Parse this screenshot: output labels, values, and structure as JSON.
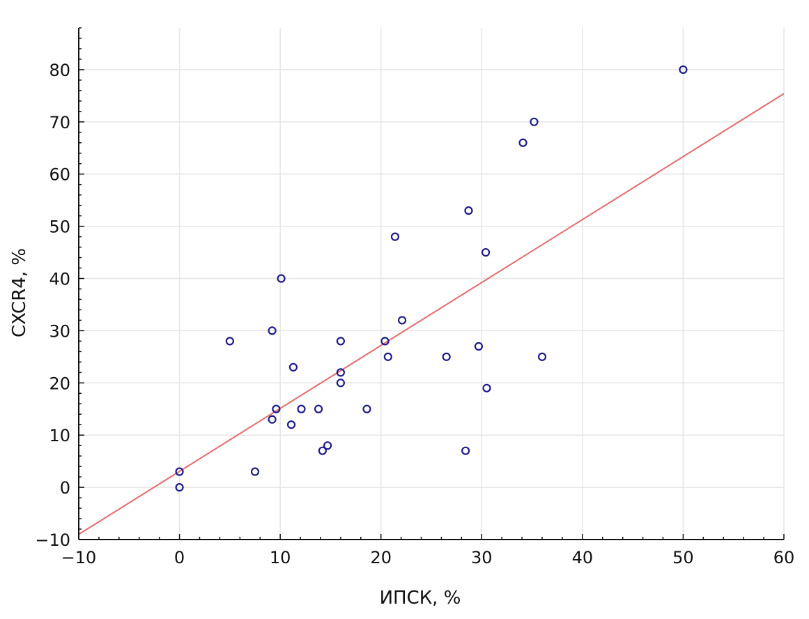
{
  "chart_data": {
    "type": "scatter",
    "title": "",
    "xlabel": "ИПСК, %",
    "ylabel": "CXCR4, %",
    "xlim": [
      -10,
      60
    ],
    "ylim": [
      -10,
      88
    ],
    "x_ticks": [
      -10,
      0,
      10,
      20,
      30,
      40,
      50,
      60
    ],
    "y_ticks": [
      -10,
      0,
      10,
      20,
      30,
      40,
      50,
      60,
      70,
      80
    ],
    "x_tick_labels": [
      "−10",
      "0",
      "10",
      "20",
      "30",
      "40",
      "50",
      "60"
    ],
    "y_tick_labels": [
      "−10",
      "0",
      "10",
      "20",
      "30",
      "40",
      "50",
      "60",
      "70",
      "80"
    ],
    "grid": true,
    "point_color": "#1a1a8c",
    "line_color": "#e8696b",
    "grid_color": "#e6e6e6",
    "points": [
      {
        "x": 0,
        "y": 3
      },
      {
        "x": 0,
        "y": 0
      },
      {
        "x": 5,
        "y": 28
      },
      {
        "x": 7.5,
        "y": 3
      },
      {
        "x": 9.2,
        "y": 30
      },
      {
        "x": 9.2,
        "y": 13
      },
      {
        "x": 9.6,
        "y": 15
      },
      {
        "x": 10.1,
        "y": 40
      },
      {
        "x": 11.1,
        "y": 12
      },
      {
        "x": 11.3,
        "y": 23
      },
      {
        "x": 12.1,
        "y": 15
      },
      {
        "x": 13.8,
        "y": 15
      },
      {
        "x": 14.2,
        "y": 7
      },
      {
        "x": 14.7,
        "y": 8
      },
      {
        "x": 16,
        "y": 28
      },
      {
        "x": 16,
        "y": 22
      },
      {
        "x": 16,
        "y": 20
      },
      {
        "x": 18.6,
        "y": 15
      },
      {
        "x": 20.4,
        "y": 28
      },
      {
        "x": 20.7,
        "y": 25
      },
      {
        "x": 21.4,
        "y": 48
      },
      {
        "x": 22.1,
        "y": 32
      },
      {
        "x": 26.5,
        "y": 25
      },
      {
        "x": 28.4,
        "y": 7
      },
      {
        "x": 28.7,
        "y": 53
      },
      {
        "x": 29.7,
        "y": 27
      },
      {
        "x": 30.4,
        "y": 45
      },
      {
        "x": 30.5,
        "y": 19
      },
      {
        "x": 34.1,
        "y": 66
      },
      {
        "x": 35.2,
        "y": 70
      },
      {
        "x": 36,
        "y": 25
      },
      {
        "x": 50,
        "y": 80
      }
    ],
    "trendline": {
      "x": [
        -10,
        60
      ],
      "y": [
        -9,
        75.4
      ]
    }
  }
}
